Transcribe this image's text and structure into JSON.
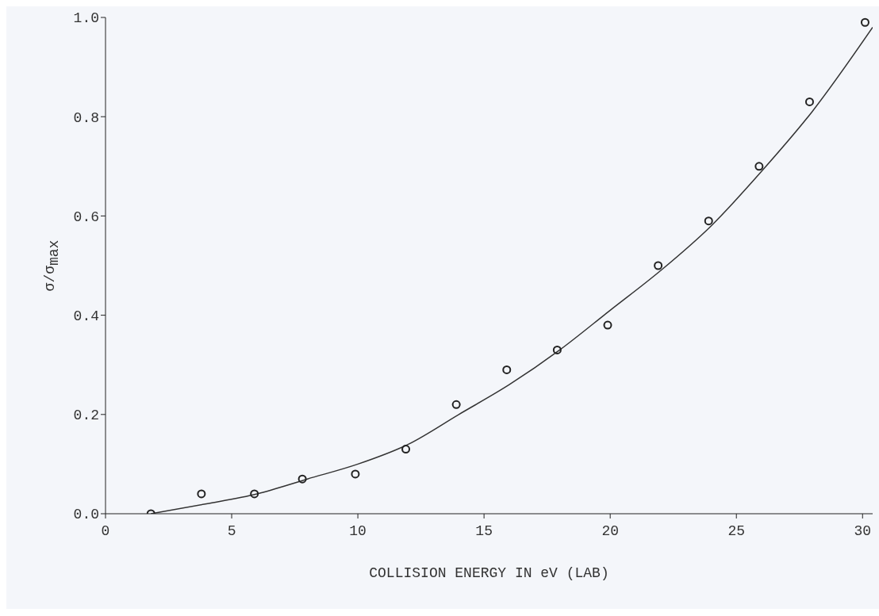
{
  "chart_data": {
    "type": "scatter",
    "xlabel": "COLLISION ENERGY IN eV (LAB)",
    "ylabel": "σ/σ$_{max}$",
    "xlim": [
      0,
      30.4
    ],
    "xticks": [
      0,
      5,
      10,
      15,
      20,
      25,
      30
    ],
    "ylim": [
      0,
      1.0
    ],
    "yticks": [
      {
        "value": 0,
        "label": "0.0"
      },
      {
        "value": 0.2,
        "label": "0.2"
      },
      {
        "value": 0.4,
        "label": "0.4"
      },
      {
        "value": 0.6,
        "label": "0.6"
      },
      {
        "value": 0.8,
        "label": "0.8"
      },
      {
        "value": 1.0,
        "label": "1.0"
      }
    ],
    "series": [
      {
        "marker": "circle",
        "color": "#222222",
        "x": [
          1.8,
          3.8,
          5.9,
          7.8,
          9.9,
          11.9,
          13.9,
          15.9,
          17.9,
          19.9,
          21.9,
          23.9,
          25.9,
          27.9,
          30.1
        ],
        "values": [
          0.0,
          0.04,
          0.04,
          0.07,
          0.08,
          0.13,
          0.22,
          0.29,
          0.33,
          0.38,
          0.5,
          0.59,
          0.7,
          0.83,
          0.99
        ]
      },
      {
        "type": "line",
        "marker": "none",
        "line_style": "solid",
        "color": "#333333",
        "x": [
          1.8,
          4,
          6,
          8,
          10,
          12,
          14,
          16,
          18,
          20,
          22,
          24,
          26,
          28,
          30.4
        ],
        "values": [
          0.0,
          0.02,
          0.04,
          0.07,
          0.1,
          0.14,
          0.2,
          0.26,
          0.33,
          0.41,
          0.49,
          0.58,
          0.69,
          0.81,
          0.98
        ]
      }
    ]
  }
}
